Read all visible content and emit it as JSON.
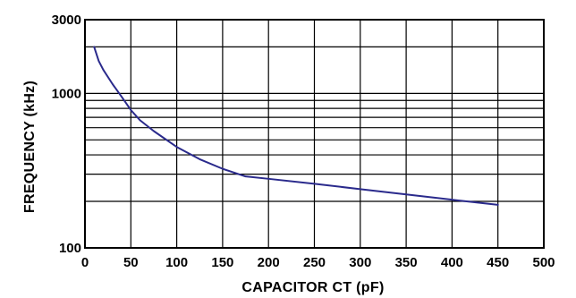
{
  "chart_data": {
    "type": "line",
    "xlabel": "CAPACITOR  CT  (pF)",
    "ylabel": "FREQUENCY  (kHz)",
    "xlim": [
      0,
      500
    ],
    "ylim": [
      100,
      3000
    ],
    "yscale": "log",
    "grid": true,
    "x_ticks": [
      0,
      50,
      100,
      150,
      200,
      250,
      300,
      350,
      400,
      450,
      500
    ],
    "x_tick_labels": [
      "0",
      "50",
      "100",
      "150",
      "200",
      "250",
      "300",
      "350",
      "400",
      "450",
      "500"
    ],
    "y_tick_labels": [
      "100",
      "1000",
      "3000"
    ],
    "y_gridlines": [
      200,
      300,
      400,
      500,
      600,
      700,
      800,
      900,
      1000,
      2000
    ],
    "line_color": "#2a2a8c",
    "series": [
      {
        "x": [
          10,
          15,
          20,
          30,
          40,
          50,
          60,
          75,
          100,
          125,
          150,
          175,
          200,
          250,
          300,
          350,
          400,
          450
        ],
        "y": [
          2000,
          1620,
          1420,
          1150,
          950,
          780,
          670,
          570,
          450,
          375,
          325,
          290,
          280,
          260,
          240,
          222,
          205,
          190
        ]
      }
    ]
  }
}
